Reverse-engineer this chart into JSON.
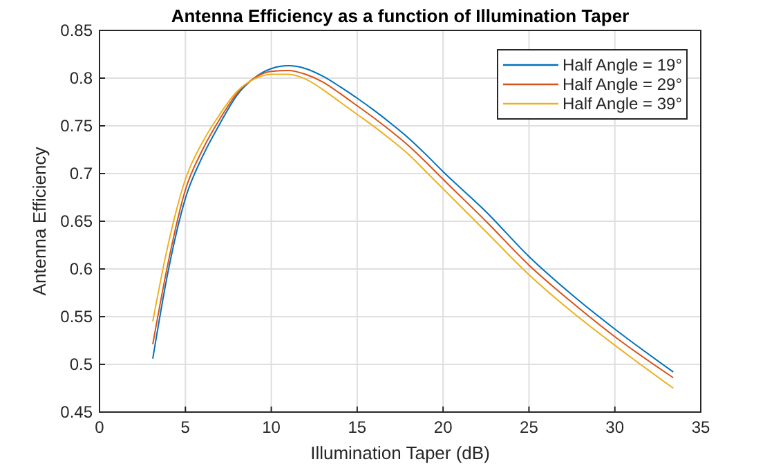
{
  "chart_data": {
    "type": "line",
    "title": "Antenna Efficiency as a function of Illumination Taper",
    "xlabel": "Illumination Taper (dB)",
    "ylabel": "Antenna Efficiency",
    "x": [
      3.1,
      4,
      5,
      6,
      7,
      8,
      9,
      10,
      11,
      12,
      13,
      14,
      15,
      16,
      17,
      18,
      19,
      20,
      22.5,
      25,
      27.5,
      30,
      33.4
    ],
    "series": [
      {
        "name": "Half Angle = 19°",
        "color": "#0072bd",
        "values": [
          0.506,
          0.598,
          0.674,
          0.718,
          0.752,
          0.782,
          0.8,
          0.81,
          0.813,
          0.81,
          0.802,
          0.791,
          0.779,
          0.766,
          0.752,
          0.737,
          0.72,
          0.702,
          0.66,
          0.613,
          0.573,
          0.537,
          0.492
        ]
      },
      {
        "name": "Half Angle = 29°",
        "color": "#d95319",
        "values": [
          0.521,
          0.607,
          0.683,
          0.725,
          0.757,
          0.784,
          0.8,
          0.807,
          0.808,
          0.804,
          0.796,
          0.784,
          0.771,
          0.758,
          0.744,
          0.729,
          0.712,
          0.694,
          0.65,
          0.604,
          0.565,
          0.529,
          0.486
        ]
      },
      {
        "name": "Half Angle = 39°",
        "color": "#edb120",
        "values": [
          0.545,
          0.626,
          0.694,
          0.733,
          0.762,
          0.786,
          0.799,
          0.804,
          0.804,
          0.799,
          0.788,
          0.775,
          0.762,
          0.749,
          0.735,
          0.72,
          0.702,
          0.684,
          0.639,
          0.594,
          0.555,
          0.52,
          0.475
        ]
      }
    ],
    "xlim": [
      0,
      35
    ],
    "xticks": [
      0,
      5,
      10,
      15,
      20,
      25,
      30,
      35
    ],
    "ylim": [
      0.45,
      0.85
    ],
    "yticks": [
      0.45,
      0.5,
      0.55,
      0.6,
      0.65,
      0.7,
      0.75,
      0.8,
      0.85
    ],
    "grid": true,
    "legend": "top right",
    "marker": "none",
    "line_style": "solid"
  }
}
